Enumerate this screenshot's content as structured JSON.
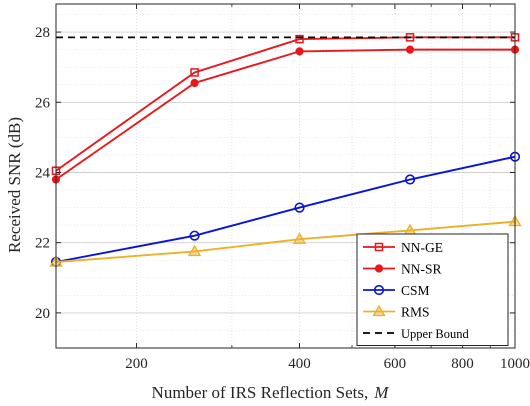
{
  "chart_data": {
    "type": "line",
    "xscale": "log",
    "xlabel": "Number of IRS Reflection Sets,",
    "xlabel_var": "M",
    "ylabel": "Received SNR (dB)",
    "xlim": [
      142,
      1000
    ],
    "ylim": [
      19,
      28.8
    ],
    "xticks": [
      200,
      400,
      600,
      800,
      1000
    ],
    "xtick_labels": [
      "200",
      "400",
      "600",
      "800",
      "1000"
    ],
    "yticks": [
      20,
      22,
      24,
      26,
      28
    ],
    "ytick_labels": [
      "20",
      "22",
      "24",
      "26",
      "28"
    ],
    "grid": true,
    "legend_position": "bottom-right",
    "series": [
      {
        "name": "NN-GE",
        "color": "#e8171c",
        "marker": "square",
        "dash": "solid",
        "x": [
          142,
          256,
          400,
          640,
          1000
        ],
        "y": [
          24.05,
          26.85,
          27.8,
          27.85,
          27.85
        ]
      },
      {
        "name": "NN-SR",
        "color": "#e8171c",
        "marker": "dot",
        "dash": "solid",
        "x": [
          142,
          256,
          400,
          640,
          1000
        ],
        "y": [
          23.8,
          26.55,
          27.45,
          27.5,
          27.5
        ]
      },
      {
        "name": "CSM",
        "color": "#0a14d8",
        "marker": "circle",
        "dash": "solid",
        "x": [
          142,
          256,
          400,
          640,
          1000
        ],
        "y": [
          21.45,
          22.2,
          23.0,
          23.8,
          24.45
        ]
      },
      {
        "name": "RMS",
        "color": "#ecb12a",
        "marker": "triangle",
        "dash": "solid",
        "x": [
          142,
          256,
          400,
          640,
          1000
        ],
        "y": [
          21.45,
          21.75,
          22.1,
          22.35,
          22.6
        ]
      },
      {
        "name": "Upper Bound",
        "color": "#000000",
        "marker": "none",
        "dash": "dashed",
        "x": [
          142,
          1000
        ],
        "y": [
          27.85,
          27.85
        ]
      }
    ]
  }
}
